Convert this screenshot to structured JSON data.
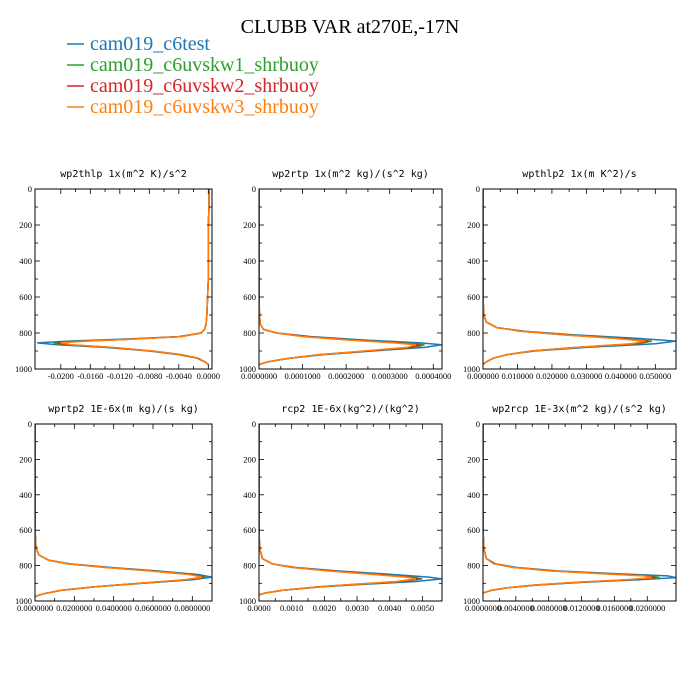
{
  "figure": {
    "title": "CLUBB VAR at270E,-17N"
  },
  "colors": {
    "series": [
      "#1f77b4",
      "#2ca02c",
      "#d62728",
      "#ff7f0e"
    ]
  },
  "chart_data": [
    {
      "type": "line",
      "title": "wp2thlp  1x(m^2 K)/s^2",
      "xlim": [
        -0.0235,
        0.0005
      ],
      "ylim": [
        1000,
        0
      ],
      "x_ticks": [
        -0.02,
        -0.016,
        -0.012,
        -0.008,
        -0.004,
        0.0
      ],
      "x_tick_labels": [
        "-0.0200",
        "-0.0160",
        "-0.0120",
        "-0.0080",
        "-0.0040",
        "0.0000"
      ],
      "y_ticks": [
        0,
        200,
        400,
        600,
        800,
        1000
      ],
      "y_tick_labels": [
        "0",
        "200",
        "400",
        "600",
        "800",
        "1000"
      ],
      "y": [
        0,
        100,
        200,
        300,
        400,
        500,
        600,
        700,
        750,
        780,
        800,
        820,
        835,
        845,
        855,
        865,
        880,
        900,
        920,
        940,
        960,
        975
      ],
      "series": [
        {
          "name": "cam019_c6test",
          "values": [
            0.0001,
            0.0001,
            0.0,
            0.0,
            0.0,
            0.0,
            -0.0001,
            -0.0002,
            -0.0003,
            -0.0005,
            -0.001,
            -0.004,
            -0.012,
            -0.019,
            -0.0232,
            -0.0205,
            -0.014,
            -0.008,
            -0.004,
            -0.0015,
            -0.0005,
            0.0
          ]
        },
        {
          "name": "cam019_c6uvskw1_shrbuoy",
          "values": [
            0.0001,
            0.0001,
            0.0,
            0.0,
            0.0,
            0.0,
            -0.0001,
            -0.0002,
            -0.0003,
            -0.0005,
            -0.001,
            -0.0038,
            -0.011,
            -0.0175,
            -0.021,
            -0.0195,
            -0.0135,
            -0.0078,
            -0.0038,
            -0.0014,
            -0.0005,
            0.0
          ]
        },
        {
          "name": "cam019_c6uvskw2_shrbuoy",
          "values": [
            0.0001,
            0.0001,
            0.0,
            0.0,
            0.0,
            0.0,
            -0.0001,
            -0.0002,
            -0.0003,
            -0.0005,
            -0.001,
            -0.0037,
            -0.0108,
            -0.017,
            -0.0205,
            -0.019,
            -0.0132,
            -0.0076,
            -0.0037,
            -0.0014,
            -0.0005,
            0.0
          ]
        },
        {
          "name": "cam019_c6uvskw3_shrbuoy",
          "values": [
            0.0001,
            0.0001,
            0.0,
            0.0,
            0.0,
            0.0,
            -0.0001,
            -0.0002,
            -0.0003,
            -0.0005,
            -0.001,
            -0.0036,
            -0.0105,
            -0.0165,
            -0.02,
            -0.0186,
            -0.013,
            -0.0075,
            -0.0036,
            -0.0013,
            -0.0005,
            0.0
          ]
        }
      ]
    },
    {
      "type": "line",
      "title": "wp2rtp  1x(m^2 kg)/(s^2 kg)",
      "xlim": [
        0.0,
        0.00042
      ],
      "ylim": [
        1000,
        0
      ],
      "x_ticks": [
        0.0,
        0.0001,
        0.0002,
        0.0003,
        0.0004
      ],
      "x_tick_labels": [
        "0.0000000",
        "0.0001000",
        "0.0002000",
        "0.0003000",
        "0.0004000"
      ],
      "y_ticks": [
        0,
        200,
        400,
        600,
        800,
        1000
      ],
      "y_tick_labels": [
        "0",
        "200",
        "400",
        "600",
        "800",
        "1000"
      ],
      "y": [
        0,
        200,
        400,
        600,
        700,
        750,
        780,
        800,
        820,
        840,
        855,
        865,
        880,
        900,
        920,
        940,
        960,
        975
      ],
      "series": [
        {
          "name": "cam019_c6test",
          "values": [
            0.0,
            0.0,
            0.0,
            0.0,
            1e-06,
            3e-06,
            1e-05,
            4e-05,
            0.00012,
            0.00025,
            0.00037,
            0.00042,
            0.00038,
            0.00026,
            0.00015,
            7e-05,
            2e-05,
            0.0
          ]
        },
        {
          "name": "cam019_c6uvskw1_shrbuoy",
          "values": [
            0.0,
            0.0,
            0.0,
            0.0,
            1e-06,
            3e-06,
            1e-05,
            4e-05,
            0.00011,
            0.00023,
            0.00033,
            0.00038,
            0.00036,
            0.00025,
            0.00014,
            7e-05,
            2e-05,
            0.0
          ]
        },
        {
          "name": "cam019_c6uvskw2_shrbuoy",
          "values": [
            0.0,
            0.0,
            0.0,
            0.0,
            1e-06,
            3e-06,
            1e-05,
            4e-05,
            0.00011,
            0.00022,
            0.00032,
            0.00037,
            0.00035,
            0.00025,
            0.00014,
            7e-05,
            2e-05,
            0.0
          ]
        },
        {
          "name": "cam019_c6uvskw3_shrbuoy",
          "values": [
            0.0,
            0.0,
            0.0,
            0.0,
            1e-06,
            3e-06,
            1e-05,
            4e-05,
            0.0001,
            0.00021,
            0.00031,
            0.00036,
            0.00034,
            0.00024,
            0.00014,
            7e-05,
            2e-05,
            0.0
          ]
        }
      ]
    },
    {
      "type": "line",
      "title": "wpthlp2  1x(m K^2)/s",
      "xlim": [
        0.0,
        0.056
      ],
      "ylim": [
        1000,
        0
      ],
      "x_ticks": [
        0.0,
        0.01,
        0.02,
        0.03,
        0.04,
        0.05
      ],
      "x_tick_labels": [
        "0.000000",
        "0.010000",
        "0.020000",
        "0.030000",
        "0.040000",
        "0.050000"
      ],
      "y_ticks": [
        0,
        200,
        400,
        600,
        800,
        1000
      ],
      "y_tick_labels": [
        "0",
        "200",
        "400",
        "600",
        "800",
        "1000"
      ],
      "y": [
        0,
        200,
        400,
        600,
        700,
        740,
        770,
        790,
        810,
        830,
        845,
        860,
        880,
        900,
        920,
        940,
        960,
        975
      ],
      "series": [
        {
          "name": "cam019_c6test",
          "values": [
            0.0,
            0.0,
            0.0,
            0.0,
            0.0002,
            0.001,
            0.004,
            0.012,
            0.026,
            0.045,
            0.056,
            0.05,
            0.03,
            0.015,
            0.007,
            0.003,
            0.001,
            0.0
          ]
        },
        {
          "name": "cam019_c6uvskw1_shrbuoy",
          "values": [
            0.0,
            0.0,
            0.0,
            0.0,
            0.0002,
            0.001,
            0.004,
            0.011,
            0.024,
            0.04,
            0.049,
            0.045,
            0.028,
            0.014,
            0.007,
            0.003,
            0.001,
            0.0
          ]
        },
        {
          "name": "cam019_c6uvskw2_shrbuoy",
          "values": [
            0.0,
            0.0,
            0.0,
            0.0,
            0.0002,
            0.001,
            0.004,
            0.011,
            0.023,
            0.039,
            0.048,
            0.044,
            0.027,
            0.014,
            0.007,
            0.003,
            0.001,
            0.0
          ]
        },
        {
          "name": "cam019_c6uvskw3_shrbuoy",
          "values": [
            0.0,
            0.0,
            0.0,
            0.0,
            0.0002,
            0.001,
            0.004,
            0.011,
            0.023,
            0.038,
            0.047,
            0.043,
            0.027,
            0.014,
            0.007,
            0.003,
            0.001,
            0.0
          ]
        }
      ]
    },
    {
      "type": "line",
      "title": "wprtp2  1E-6x(m kg)/(s kg)",
      "xlim": [
        0.0,
        0.09
      ],
      "ylim": [
        1000,
        0
      ],
      "x_ticks": [
        0.0,
        0.02,
        0.04,
        0.06,
        0.08
      ],
      "x_tick_labels": [
        "0.0000000",
        "0.0200000",
        "0.0400000",
        "0.0600000",
        "0.0800000"
      ],
      "y_ticks": [
        0,
        200,
        400,
        600,
        800,
        1000
      ],
      "y_tick_labels": [
        "0",
        "200",
        "400",
        "600",
        "800",
        "1000"
      ],
      "y": [
        0,
        200,
        400,
        600,
        700,
        740,
        770,
        790,
        810,
        830,
        850,
        865,
        880,
        900,
        920,
        940,
        960,
        975
      ],
      "series": [
        {
          "name": "cam019_c6test",
          "values": [
            0.0,
            0.0,
            0.0,
            0.0,
            0.0005,
            0.002,
            0.007,
            0.018,
            0.038,
            0.062,
            0.083,
            0.09,
            0.08,
            0.055,
            0.03,
            0.013,
            0.004,
            0.0
          ]
        },
        {
          "name": "cam019_c6uvskw1_shrbuoy",
          "values": [
            0.0,
            0.0,
            0.0,
            0.0,
            0.0005,
            0.002,
            0.007,
            0.017,
            0.036,
            0.06,
            0.08,
            0.087,
            0.078,
            0.054,
            0.03,
            0.013,
            0.004,
            0.0
          ]
        },
        {
          "name": "cam019_c6uvskw2_shrbuoy",
          "values": [
            0.0,
            0.0,
            0.0,
            0.0,
            0.0005,
            0.002,
            0.007,
            0.017,
            0.036,
            0.059,
            0.079,
            0.086,
            0.077,
            0.053,
            0.03,
            0.013,
            0.004,
            0.0
          ]
        },
        {
          "name": "cam019_c6uvskw3_shrbuoy",
          "values": [
            0.0,
            0.0,
            0.0,
            0.0,
            0.0005,
            0.002,
            0.007,
            0.017,
            0.035,
            0.058,
            0.078,
            0.085,
            0.076,
            0.053,
            0.03,
            0.013,
            0.004,
            0.0
          ]
        }
      ]
    },
    {
      "type": "line",
      "title": "rcp2  1E-6x(kg^2)/(kg^2)",
      "xlim": [
        0.0,
        0.0056
      ],
      "ylim": [
        1000,
        0
      ],
      "x_ticks": [
        0.0,
        0.001,
        0.002,
        0.003,
        0.004,
        0.005
      ],
      "x_tick_labels": [
        "0.0000",
        "0.0010",
        "0.0020",
        "0.0030",
        "0.0040",
        "0.0050"
      ],
      "y_ticks": [
        0,
        200,
        400,
        600,
        800,
        1000
      ],
      "y_tick_labels": [
        "0",
        "200",
        "400",
        "600",
        "800",
        "1000"
      ],
      "y": [
        0,
        200,
        400,
        600,
        700,
        760,
        790,
        810,
        830,
        850,
        865,
        875,
        890,
        905,
        920,
        940,
        955,
        965
      ],
      "series": [
        {
          "name": "cam019_c6test",
          "values": [
            0.0,
            0.0,
            0.0,
            0.0,
            2e-05,
            0.0001,
            0.0004,
            0.0011,
            0.0024,
            0.0041,
            0.0052,
            0.0056,
            0.0048,
            0.0033,
            0.0019,
            0.0007,
            0.0002,
            0.0
          ]
        },
        {
          "name": "cam019_c6uvskw1_shrbuoy",
          "values": [
            0.0,
            0.0,
            0.0,
            0.0,
            2e-05,
            0.0001,
            0.0004,
            0.001,
            0.0022,
            0.0037,
            0.0047,
            0.005,
            0.0044,
            0.0031,
            0.0018,
            0.0007,
            0.0002,
            0.0
          ]
        },
        {
          "name": "cam019_c6uvskw2_shrbuoy",
          "values": [
            0.0,
            0.0,
            0.0,
            0.0,
            2e-05,
            0.0001,
            0.0004,
            0.001,
            0.0022,
            0.0036,
            0.0046,
            0.0049,
            0.0043,
            0.003,
            0.0018,
            0.0007,
            0.0002,
            0.0
          ]
        },
        {
          "name": "cam019_c6uvskw3_shrbuoy",
          "values": [
            0.0,
            0.0,
            0.0,
            0.0,
            2e-05,
            0.0001,
            0.0004,
            0.001,
            0.0021,
            0.0035,
            0.0045,
            0.0048,
            0.0042,
            0.003,
            0.0018,
            0.0007,
            0.0002,
            0.0
          ]
        }
      ]
    },
    {
      "type": "line",
      "title": "wp2rcp  1E-3x(m^2 kg)/(s^2 kg)",
      "xlim": [
        0.0,
        0.0235
      ],
      "ylim": [
        1000,
        0
      ],
      "x_ticks": [
        0.0,
        0.004,
        0.008,
        0.012,
        0.016,
        0.02
      ],
      "x_tick_labels": [
        "0.0000000",
        "0.0040000",
        "0.0080000",
        "0.0120000",
        "0.0160000",
        "0.0200000"
      ],
      "y_ticks": [
        0,
        200,
        400,
        600,
        800,
        1000
      ],
      "y_tick_labels": [
        "0",
        "200",
        "400",
        "600",
        "800",
        "1000"
      ],
      "y": [
        0,
        200,
        400,
        600,
        700,
        760,
        790,
        810,
        830,
        845,
        858,
        868,
        880,
        895,
        910,
        925,
        940,
        955
      ],
      "series": [
        {
          "name": "cam019_c6test",
          "values": [
            0.0,
            0.0,
            0.0,
            0.0,
            0.0001,
            0.0004,
            0.0015,
            0.004,
            0.009,
            0.016,
            0.0225,
            0.0235,
            0.019,
            0.012,
            0.0065,
            0.003,
            0.001,
            0.0
          ]
        },
        {
          "name": "cam019_c6uvskw1_shrbuoy",
          "values": [
            0.0,
            0.0,
            0.0,
            0.0,
            0.0001,
            0.0004,
            0.0014,
            0.0038,
            0.0085,
            0.0148,
            0.0205,
            0.0215,
            0.018,
            0.0115,
            0.0063,
            0.003,
            0.001,
            0.0
          ]
        },
        {
          "name": "cam019_c6uvskw2_shrbuoy",
          "values": [
            0.0,
            0.0,
            0.0,
            0.0,
            0.0001,
            0.0004,
            0.0014,
            0.0037,
            0.0083,
            0.0145,
            0.02,
            0.021,
            0.0177,
            0.0113,
            0.0062,
            0.003,
            0.001,
            0.0
          ]
        },
        {
          "name": "cam019_c6uvskw3_shrbuoy",
          "values": [
            0.0,
            0.0,
            0.0,
            0.0,
            0.0001,
            0.0004,
            0.0013,
            0.0036,
            0.0081,
            0.0142,
            0.0196,
            0.0206,
            0.0174,
            0.0111,
            0.0061,
            0.003,
            0.001,
            0.0
          ]
        }
      ]
    }
  ]
}
